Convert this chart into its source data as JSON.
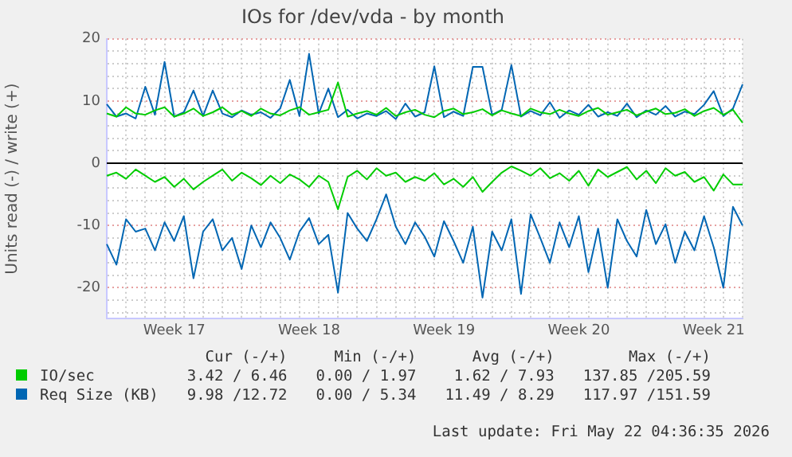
{
  "chart_data": {
    "type": "line",
    "title": "IOs for /dev/vda - by month",
    "ylabel": "Units read (-) / write (+)",
    "categories": [
      null,
      null,
      null,
      null,
      null,
      null,
      null,
      "Week 17",
      null,
      null,
      null,
      null,
      null,
      null,
      null,
      null,
      null,
      null,
      null,
      null,
      null,
      "Week 18",
      null,
      null,
      null,
      null,
      null,
      null,
      null,
      null,
      null,
      null,
      null,
      null,
      null,
      "Week 19",
      null,
      null,
      null,
      null,
      null,
      null,
      null,
      null,
      null,
      null,
      null,
      null,
      null,
      "Week 20",
      null,
      null,
      null,
      null,
      null,
      null,
      null,
      null,
      null,
      null,
      null,
      null,
      null,
      "Week 21",
      null,
      null,
      null
    ],
    "series": [
      {
        "name": "IO/sec",
        "color": "#00cc00",
        "values": [
          8,
          7.5,
          9,
          8,
          7.8,
          8.5,
          9,
          7.5,
          8,
          8.8,
          7.6,
          8.2,
          9,
          7.8,
          8.4,
          7.6,
          8.8,
          8,
          7.7,
          8.5,
          9,
          7.8,
          8.2,
          8.6,
          13,
          7.5,
          8,
          8.4,
          7.8,
          8.9,
          7.6,
          8.2,
          8.6,
          7.8,
          7.4,
          8.4,
          8.8,
          7.9,
          8.2,
          8.7,
          7.7,
          8.5,
          8,
          7.6,
          8.8,
          8.2,
          7.9,
          8.6,
          8,
          7.6,
          8.4,
          8.9,
          7.8,
          8.2,
          8.6,
          7.7,
          8.3,
          8.8,
          7.9,
          8.1,
          8.7,
          7.6,
          8.4,
          8.9,
          7.8,
          8.6,
          6.5
        ]
      },
      {
        "color": "#00cc00",
        "values": [
          -2,
          -1.5,
          -2.5,
          -1,
          -2,
          -3,
          -2.2,
          -3.8,
          -2.5,
          -4.2,
          -3,
          -2,
          -1,
          -2.8,
          -1.5,
          -2.4,
          -3.5,
          -2,
          -3.2,
          -1.8,
          -2.6,
          -3.8,
          -2,
          -3,
          -7.4,
          -2.2,
          -1.2,
          -2.6,
          -0.8,
          -2,
          -1.5,
          -3,
          -2.2,
          -2.8,
          -1.6,
          -3.4,
          -2.5,
          -3.8,
          -2.2,
          -4.6,
          -3,
          -1.5,
          -0.5,
          -1.2,
          -2,
          -0.8,
          -2.4,
          -1.6,
          -2.8,
          -1.2,
          -3.6,
          -1,
          -2.2,
          -1.4,
          -0.6,
          -2.6,
          -1.2,
          -3.2,
          -0.8,
          -2,
          -1.4,
          -3,
          -2.2,
          -4.4,
          -1.8,
          -3.4,
          -3.4
        ]
      },
      {
        "name": "Req Size (KB)",
        "color": "#0066b3",
        "values": [
          9.5,
          7.5,
          8,
          7.2,
          12.3,
          7.8,
          16.3,
          7.5,
          8.2,
          11.7,
          7.6,
          11.7,
          8,
          7.4,
          8.5,
          7.8,
          8.2,
          7.3,
          8.8,
          13.4,
          7.6,
          17.6,
          8,
          12,
          7.4,
          8.6,
          7.2,
          8,
          7.6,
          8.4,
          7.1,
          9.6,
          7.5,
          8.2,
          15.6,
          7.4,
          8.3,
          7.6,
          15.5,
          15.5,
          7.8,
          8.6,
          15.8,
          7.5,
          8.4,
          7.7,
          9.8,
          7.3,
          8.5,
          7.8,
          9.4,
          7.5,
          8.2,
          7.6,
          9.6,
          7.4,
          8.5,
          7.8,
          9.2,
          7.5,
          8.3,
          7.9,
          9.4,
          11.6,
          7.6,
          8.8,
          12.7
        ]
      },
      {
        "color": "#0066b3",
        "values": [
          -13,
          -16.3,
          -9,
          -11,
          -10.5,
          -14,
          -9.5,
          -12.5,
          -8.5,
          -18.5,
          -11,
          -9,
          -14,
          -12,
          -17,
          -10,
          -13.5,
          -9.5,
          -12,
          -15.5,
          -11,
          -8.8,
          -13,
          -11.5,
          -20.8,
          -8,
          -10.5,
          -12.5,
          -9,
          -5,
          -10.2,
          -13,
          -9.5,
          -11.8,
          -15,
          -9.3,
          -12.5,
          -16,
          -10.2,
          -21.6,
          -11,
          -14,
          -9,
          -21,
          -8.2,
          -12,
          -16,
          -9.5,
          -13.5,
          -8.5,
          -17.5,
          -10.5,
          -20,
          -9,
          -12.5,
          -15,
          -7.5,
          -13,
          -9.8,
          -16,
          -11,
          -14,
          -8.5,
          -13.5,
          -20,
          -7,
          -10
        ]
      }
    ],
    "ylim": [
      -25,
      20
    ],
    "yticks": [
      {
        "value": -24,
        "label": null
      },
      {
        "value": -22,
        "label": null
      },
      -20,
      {
        "value": -18,
        "label": null
      },
      {
        "value": -16,
        "label": null
      },
      {
        "value": -14,
        "label": null
      },
      {
        "value": -12,
        "label": null
      },
      -10,
      {
        "value": -8,
        "label": null
      },
      {
        "value": -6,
        "label": null
      },
      {
        "value": -4,
        "label": null
      },
      {
        "value": -2,
        "label": null
      },
      0,
      {
        "value": 2,
        "label": null
      },
      {
        "value": 4,
        "label": null
      },
      {
        "value": 6,
        "label": null
      },
      {
        "value": 8,
        "label": null
      },
      10,
      {
        "value": 12,
        "label": null
      },
      {
        "value": 14,
        "label": null
      },
      {
        "value": 16,
        "label": null
      },
      {
        "value": 18,
        "label": null
      },
      20
    ],
    "ref_lines": [
      {
        "axis": "y",
        "value": 0,
        "color": "#000000"
      }
    ],
    "grid": true,
    "legend": "bottom",
    "marker": "none",
    "line_style": "solid",
    "annotations": [
      "Cur (-/+)",
      "Min (-/+)",
      "Avg (-/+)",
      "Max (-/+)",
      "3.42 / 6.46",
      "0.00 / 1.97",
      "1.62 / 7.93",
      "137.85 /205.59",
      "9.98 /12.72",
      "0.00 / 5.34",
      "11.49 / 8.29",
      "117.97 /151.59",
      "Last update: Fri May 22 04:36:35 2026"
    ]
  }
}
